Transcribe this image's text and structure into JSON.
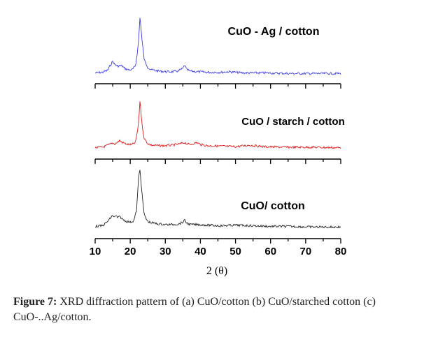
{
  "chart_data": {
    "type": "line",
    "title": "",
    "xlabel_main": "2",
    "xlabel_symbol": "θ",
    "ylabel": "",
    "xlim": [
      10,
      80
    ],
    "x_ticks": [
      10,
      20,
      30,
      40,
      50,
      60,
      70,
      80
    ],
    "grid": false,
    "series": [
      {
        "name": "CuO - Ag / cotton",
        "color": "#3a3ae6",
        "x": [
          10,
          12,
          13.5,
          14.5,
          15,
          15.5,
          16.5,
          17.5,
          18.5,
          19.5,
          20.5,
          21.5,
          22.3,
          22.8,
          23.3,
          24,
          25,
          26,
          28,
          30,
          32,
          33.5,
          35,
          35.5,
          36,
          37,
          39,
          42,
          46,
          48,
          52,
          58,
          65,
          72,
          80
        ],
        "y": [
          0.04,
          0.05,
          0.08,
          0.18,
          0.23,
          0.18,
          0.15,
          0.16,
          0.11,
          0.09,
          0.09,
          0.15,
          0.5,
          0.97,
          0.6,
          0.25,
          0.13,
          0.09,
          0.07,
          0.06,
          0.06,
          0.07,
          0.11,
          0.17,
          0.1,
          0.07,
          0.06,
          0.05,
          0.05,
          0.06,
          0.04,
          0.04,
          0.03,
          0.03,
          0.03
        ]
      },
      {
        "name": "CuO / starch / cotton",
        "color": "#e01c1c",
        "x": [
          10,
          12,
          13,
          14,
          15,
          15.5,
          16.5,
          17,
          17.5,
          18.5,
          19.5,
          20.5,
          21.5,
          22.3,
          22.8,
          23.3,
          24,
          25,
          26,
          28,
          30,
          32,
          34,
          35,
          35.5,
          36,
          37,
          38,
          39,
          40,
          42,
          46,
          50,
          54,
          58,
          65,
          72,
          80
        ],
        "y": [
          0.03,
          0.04,
          0.06,
          0.09,
          0.12,
          0.1,
          0.14,
          0.17,
          0.14,
          0.11,
          0.09,
          0.09,
          0.13,
          0.45,
          0.95,
          0.5,
          0.2,
          0.11,
          0.08,
          0.07,
          0.07,
          0.08,
          0.1,
          0.12,
          0.13,
          0.11,
          0.09,
          0.11,
          0.13,
          0.09,
          0.07,
          0.06,
          0.05,
          0.08,
          0.05,
          0.04,
          0.04,
          0.03
        ]
      },
      {
        "name": "CuO/ cotton",
        "color": "#222222",
        "x": [
          10,
          12,
          13,
          14,
          15,
          15.5,
          16,
          16.5,
          17,
          18,
          19,
          20,
          21,
          21.8,
          22.4,
          22.8,
          23.3,
          24,
          25,
          26,
          28,
          30,
          32,
          34,
          35,
          35.5,
          36,
          37,
          39,
          42,
          46,
          50,
          55,
          60,
          65,
          72,
          80
        ],
        "y": [
          0.04,
          0.05,
          0.09,
          0.15,
          0.22,
          0.19,
          0.21,
          0.18,
          0.2,
          0.15,
          0.12,
          0.11,
          0.13,
          0.3,
          0.85,
          0.97,
          0.6,
          0.22,
          0.12,
          0.1,
          0.08,
          0.07,
          0.07,
          0.08,
          0.11,
          0.14,
          0.1,
          0.07,
          0.07,
          0.06,
          0.05,
          0.06,
          0.05,
          0.04,
          0.04,
          0.03,
          0.03
        ]
      }
    ]
  },
  "caption": {
    "label": "Figure 7:",
    "text": " XRD diffraction pattern of (a) CuO/cotton (b) CuO/starched cotton (c) CuO-..Ag/cotton."
  }
}
